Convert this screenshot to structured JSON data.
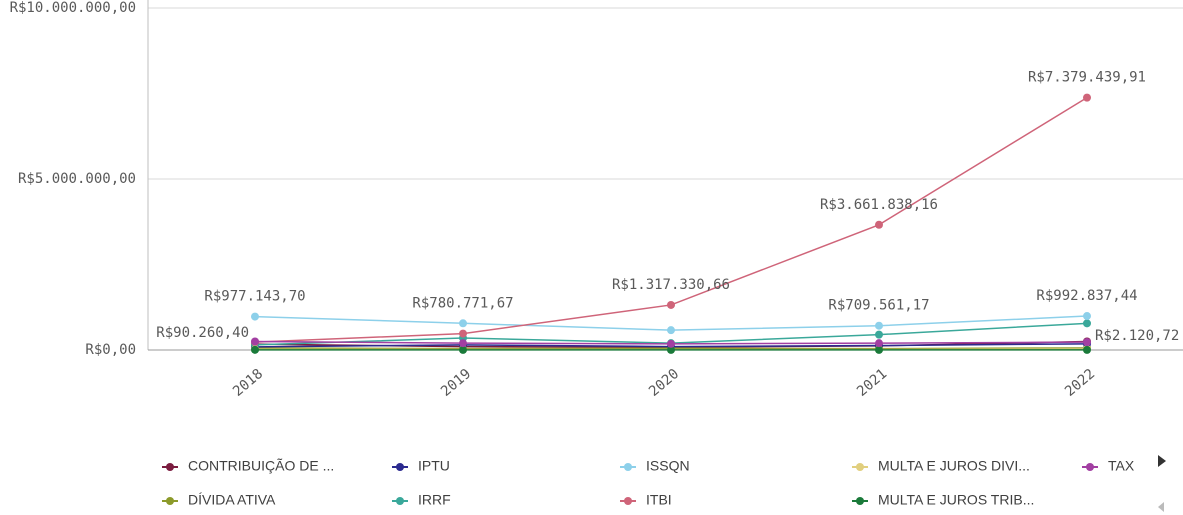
{
  "chart_data": {
    "type": "line",
    "categories": [
      "2018",
      "2019",
      "2020",
      "2021",
      "2022"
    ],
    "ylim": [
      0,
      10000000
    ],
    "yticks": [
      {
        "value": 0,
        "label": "R$0,00"
      },
      {
        "value": 5000000,
        "label": "R$5.000.000,00"
      },
      {
        "value": 10000000,
        "label": "R$10.000.000,00"
      }
    ],
    "grid": true,
    "legend": "bottom",
    "series": [
      {
        "name": "CONTRIBUIÇÃO DE ...",
        "color": "#7b1c3f",
        "values": [
          170000,
          100000,
          80000,
          120000,
          250000
        ]
      },
      {
        "name": "DÍVIDA ATIVA",
        "color": "#8c9a2a",
        "values": [
          60000,
          40000,
          50000,
          40000,
          60000
        ]
      },
      {
        "name": "IPTU",
        "color": "#2b2a8f",
        "values": [
          90260.4,
          150000,
          100000,
          130000,
          180000
        ],
        "value_labels": [
          "R$90.260,40",
          null,
          null,
          null,
          null
        ]
      },
      {
        "name": "IRRF",
        "color": "#3aa89a",
        "values": [
          150000,
          350000,
          200000,
          450000,
          780000
        ]
      },
      {
        "name": "ISSQN",
        "color": "#8dd0ea",
        "values": [
          977143.7,
          780771.67,
          580000,
          709561.17,
          992837.44
        ],
        "value_labels": [
          "R$977.143,70",
          "R$780.771,67",
          null,
          "R$709.561,17",
          "R$992.837,44"
        ]
      },
      {
        "name": "ITBI",
        "color": "#cf6479",
        "values": [
          230000,
          480000,
          1317330.66,
          3661838.16,
          7379439.91
        ],
        "value_labels": [
          null,
          null,
          "R$1.317.330,66",
          "R$3.661.838,16",
          "R$7.379.439,91"
        ]
      },
      {
        "name": "MULTA E JUROS DIVI...",
        "color": "#e1cf7e",
        "values": [
          20000,
          15000,
          10000,
          15000,
          30000
        ]
      },
      {
        "name": "MULTA E JUROS TRIB...",
        "color": "#1a7a3a",
        "values": [
          5000,
          3000,
          3000,
          2000,
          2120.72
        ],
        "value_labels": [
          null,
          null,
          null,
          null,
          "R$2.120,72"
        ]
      },
      {
        "name": "TAX",
        "color": "#a23fa2",
        "values": [
          250000,
          200000,
          180000,
          200000,
          230000
        ]
      }
    ]
  }
}
